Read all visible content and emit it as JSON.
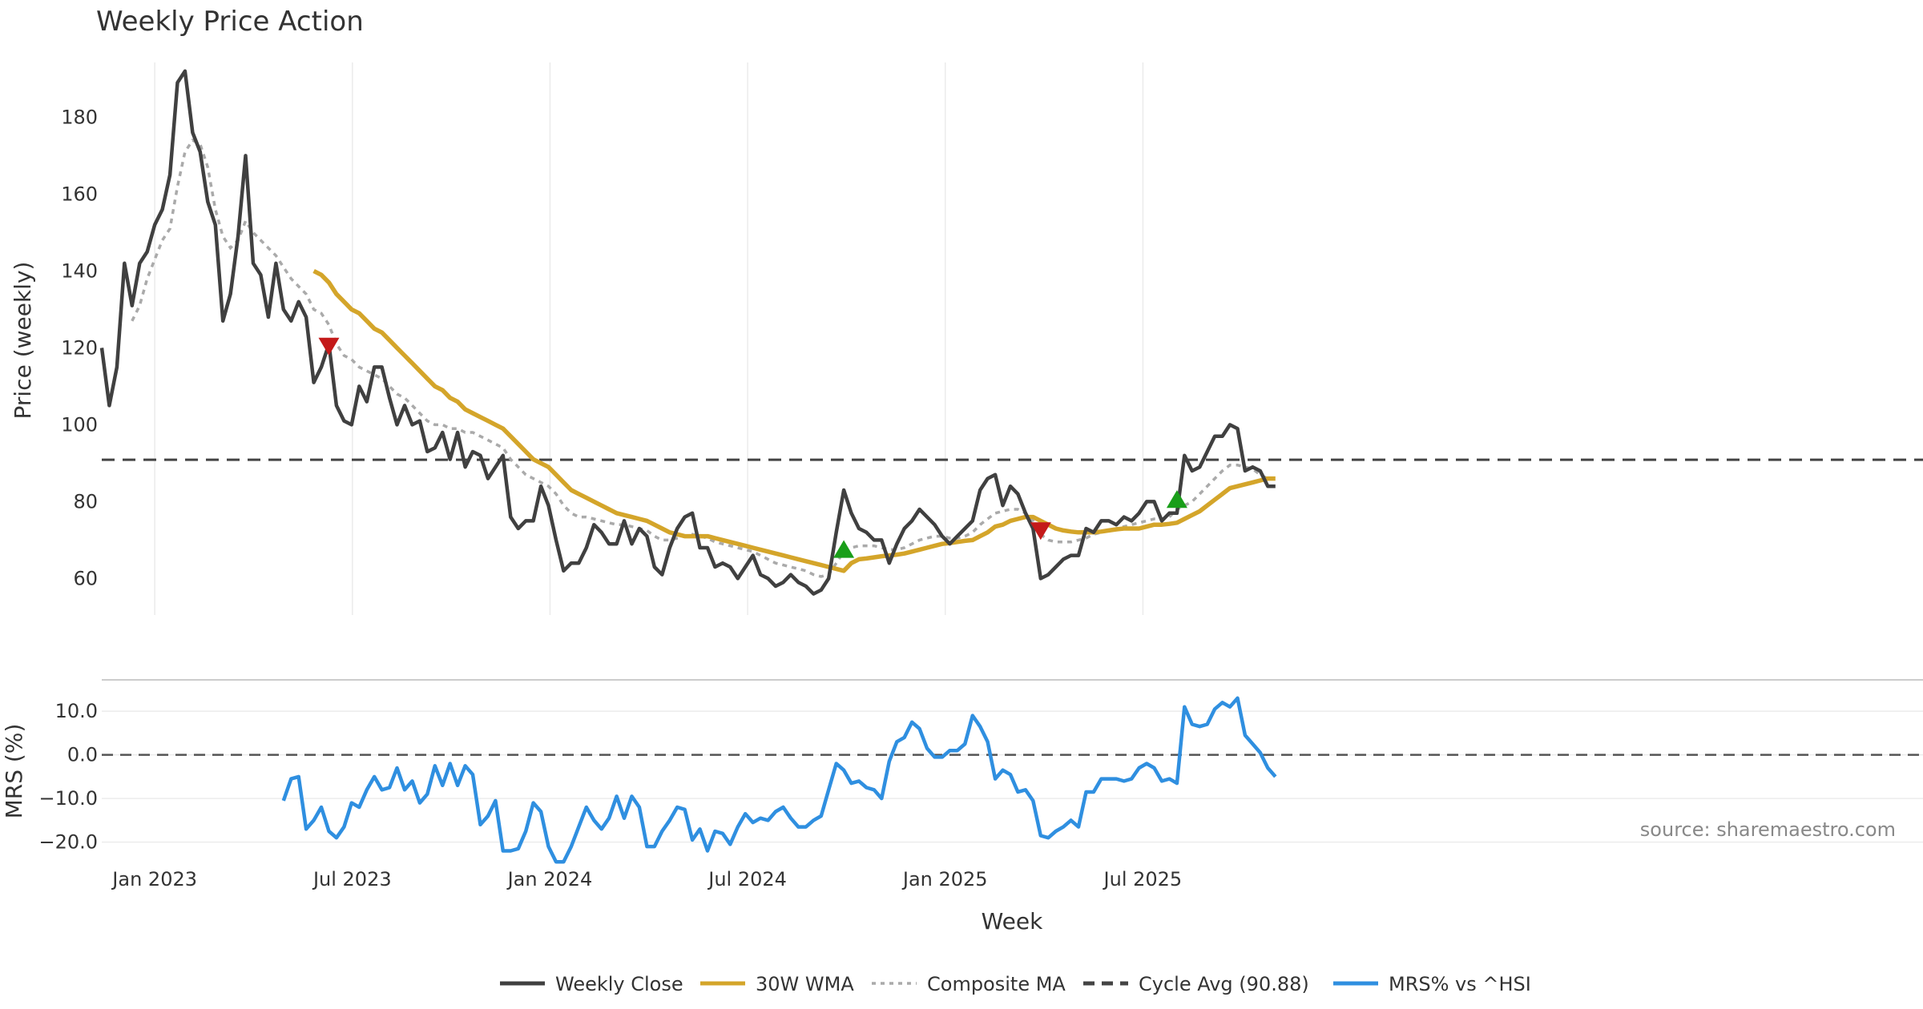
{
  "chart_data": {
    "type": "line",
    "title": "Weekly Price Action",
    "xlabel": "Week",
    "source": "source: sharemaestro.com",
    "x_ticks": [
      "Jan 2023",
      "Jul 2023",
      "Jan 2024",
      "Jul 2024",
      "Jan 2025",
      "Jul 2025"
    ],
    "legend": [
      "Weekly Close",
      "30W WMA",
      "Composite MA",
      "Cycle Avg (90.88)",
      "MRS% vs ^HSI"
    ],
    "colors": {
      "close": "#404040",
      "wma": "#d4a52a",
      "composite": "#aaaaaa",
      "cycle": "#444444",
      "mrs": "#2f8fe0",
      "buy": "#1a9e1a",
      "sell": "#c41a1a"
    },
    "price_panel": {
      "ylabel": "Price (weekly)",
      "y_ticks": [
        60,
        80,
        100,
        120,
        140,
        160,
        180
      ],
      "ylim": [
        48,
        198
      ],
      "cycle_avg": 90.88,
      "close": [
        120,
        105,
        115,
        142,
        131,
        142,
        145,
        152,
        156,
        165,
        189,
        192,
        176,
        171,
        158,
        152,
        127,
        134,
        149,
        170,
        142,
        139,
        128,
        142,
        130,
        127,
        132,
        128,
        111,
        115,
        121,
        105,
        101,
        100,
        110,
        106,
        115,
        115,
        107,
        100,
        105,
        100,
        101,
        93,
        94,
        98,
        91,
        98,
        89,
        93,
        92,
        86,
        89,
        92,
        76,
        73,
        75,
        75,
        84,
        79,
        70,
        62,
        64,
        64,
        68,
        74,
        72,
        69,
        69,
        75,
        69,
        73,
        71,
        63,
        61,
        68,
        73,
        76,
        77,
        68,
        68,
        63,
        64,
        63,
        60,
        63,
        66,
        61,
        60,
        58,
        59,
        61,
        59,
        58,
        56,
        57,
        60,
        72,
        83,
        77,
        73,
        72,
        70,
        70,
        64,
        69,
        73,
        75,
        78,
        76,
        74,
        71,
        69,
        71,
        73,
        75,
        83,
        86,
        87,
        79,
        84,
        82,
        77,
        73,
        60,
        61,
        63,
        65,
        66,
        66,
        73,
        72,
        75,
        75,
        74,
        76,
        75,
        77,
        80,
        80,
        75,
        77,
        77,
        92,
        88,
        89,
        93,
        97,
        97,
        100,
        99,
        88,
        89,
        88,
        84,
        84
      ],
      "wma": [
        null,
        null,
        null,
        null,
        null,
        null,
        null,
        null,
        null,
        null,
        null,
        null,
        null,
        null,
        null,
        null,
        null,
        null,
        null,
        null,
        null,
        null,
        null,
        null,
        null,
        null,
        null,
        null,
        140,
        139,
        137,
        134,
        132,
        130,
        129,
        127,
        125,
        124,
        122,
        120,
        118,
        116,
        114,
        112,
        110,
        109,
        107,
        106,
        104,
        103,
        102,
        101,
        100,
        99,
        97,
        95,
        93,
        91,
        90,
        89,
        87,
        85,
        83,
        82,
        81,
        80,
        79,
        78,
        77,
        76.5,
        76,
        75.5,
        75,
        74,
        73,
        72,
        71.5,
        71,
        71,
        71,
        71,
        70.5,
        70,
        69.5,
        69,
        68.5,
        68,
        67.5,
        67,
        66.5,
        66,
        65.5,
        65,
        64.5,
        64,
        63.5,
        63,
        62.5,
        62,
        64,
        65,
        65.2,
        65.5,
        65.8,
        66,
        66.2,
        66.5,
        67,
        67.5,
        68,
        68.5,
        69,
        69.2,
        69.5,
        69.8,
        70,
        71,
        72,
        73.5,
        74,
        75,
        75.5,
        76,
        76,
        75,
        74,
        73,
        72.5,
        72.2,
        72,
        72,
        72,
        72.2,
        72.5,
        72.8,
        73,
        73,
        73,
        73.5,
        74,
        74,
        74.2,
        74.5,
        75.5,
        76.5,
        77.5,
        79,
        80.5,
        82,
        83.5,
        84,
        84.5,
        85,
        85.5,
        86,
        86
      ],
      "composite": [
        null,
        null,
        null,
        null,
        127,
        131,
        138,
        143,
        148,
        151,
        162,
        171,
        174,
        173,
        167,
        156,
        149,
        146,
        148,
        153,
        150,
        148,
        146,
        144,
        141,
        138,
        136,
        134,
        130,
        129,
        126,
        121,
        118,
        117,
        115,
        114,
        113,
        112,
        110,
        108,
        107,
        105,
        103,
        101,
        100,
        100,
        99,
        99,
        98,
        98,
        97,
        96,
        95,
        94,
        91,
        89,
        87,
        86,
        85,
        84,
        82,
        79,
        77,
        76,
        76,
        75.5,
        75,
        74.5,
        74,
        74,
        73.5,
        73,
        72.5,
        71,
        70,
        70,
        70.5,
        71,
        71.5,
        71,
        70.5,
        69.5,
        69,
        68.5,
        68,
        67.5,
        67,
        66,
        65,
        64,
        63.5,
        63,
        62.5,
        62,
        61,
        60.5,
        61,
        64,
        67,
        68,
        68.5,
        68.5,
        68.5,
        68,
        67.5,
        67.5,
        68,
        69,
        70,
        70.5,
        71,
        71,
        70.5,
        70.5,
        71,
        72,
        74,
        75.5,
        77,
        77.5,
        78,
        78,
        77,
        75,
        71.5,
        70,
        69.5,
        69.5,
        69.5,
        70,
        70.5,
        71.5,
        72,
        72.5,
        73,
        73.5,
        74,
        74.5,
        75,
        75.5,
        75.5,
        76,
        78,
        79,
        80,
        82,
        84,
        86,
        88,
        89.5,
        89.5,
        89,
        88.5,
        87,
        86
      ],
      "buy_signals": [
        {
          "week": 98,
          "value": 67
        },
        {
          "week": 142,
          "value": 80
        }
      ],
      "sell_signals": [
        {
          "week": 30,
          "value": 121
        },
        {
          "week": 124,
          "value": 73
        }
      ]
    },
    "mrs_panel": {
      "ylabel": "MRS (%)",
      "y_ticks": [
        "10.0",
        "0.0",
        "−10.0",
        "−20.0"
      ],
      "y_tick_values": [
        10,
        0,
        -10,
        -20
      ],
      "ylim": [
        -23,
        17
      ],
      "zero_line": 0,
      "values": [
        null,
        null,
        null,
        null,
        null,
        null,
        null,
        null,
        null,
        null,
        null,
        null,
        null,
        null,
        null,
        null,
        null,
        null,
        null,
        null,
        null,
        null,
        null,
        null,
        -10.5,
        -5.5,
        -5,
        -17,
        -15,
        -12,
        -17.5,
        -19,
        -16.5,
        -11,
        -12,
        -8,
        -5,
        -8,
        -7.5,
        -3,
        -8,
        -6,
        -11,
        -9,
        -2.5,
        -7,
        -2,
        -7,
        -2.5,
        -4.5,
        -16,
        -14,
        -10.5,
        -22,
        -22,
        -21.5,
        -17.5,
        -11,
        -13,
        -21,
        -24.5,
        -24.5,
        -21,
        -16.5,
        -12,
        -15,
        -17,
        -14.5,
        -9.5,
        -14.5,
        -9.5,
        -12,
        -21,
        -21,
        -17.5,
        -15,
        -12,
        -12.5,
        -19.5,
        -17,
        -22,
        -17.5,
        -18,
        -20.5,
        -16.5,
        -13.5,
        -15.5,
        -14.5,
        -15,
        -13,
        -12,
        -14.5,
        -16.5,
        -16.5,
        -15,
        -14,
        -8,
        -2,
        -3.5,
        -6.5,
        -6,
        -7.5,
        -8,
        -10,
        -1.5,
        3,
        4,
        7.5,
        6,
        1.5,
        -0.5,
        -0.5,
        1,
        1,
        2.5,
        9,
        6.5,
        3,
        -5.5,
        -3.5,
        -4.5,
        -8.5,
        -8,
        -10.5,
        -18.5,
        -19,
        -17.5,
        -16.5,
        -15,
        -16.5,
        -8.5,
        -8.5,
        -5.5,
        -5.5,
        -5.5,
        -6,
        -5.5,
        -3,
        -2,
        -3,
        -6,
        -5.5,
        -6.5,
        11,
        7,
        6.5,
        7,
        10.5,
        12,
        11,
        13,
        4.5,
        2.5,
        0.5,
        -3,
        -5
      ]
    }
  }
}
